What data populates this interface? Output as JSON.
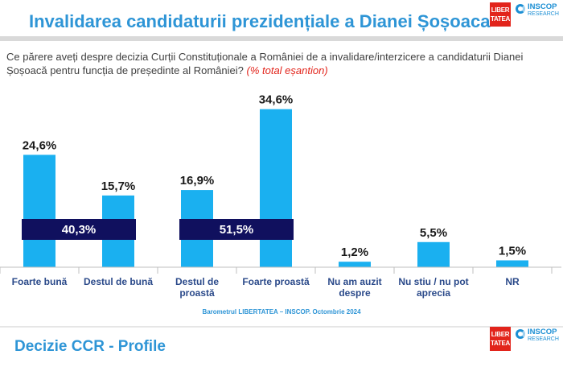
{
  "header": {
    "title": "Invalidarea candidaturii prezidențiale a Dianei Șoșoaca",
    "logo_libertatea": "LIBER TATEA",
    "logo_inscop_name": "INSCOP",
    "logo_inscop_sub": "RESEARCH"
  },
  "question": {
    "text": "Ce părere aveți despre decizia Curții Constituționale a României de a invalidare/interzicere a candidaturii Dianei Șoșoacă pentru funcția de președinte al României?",
    "note": "(% total eșantion)"
  },
  "chart_data": {
    "type": "bar",
    "categories": [
      "Foarte bună",
      "Destul de bună",
      "Destul de proastă",
      "Foarte proastă",
      "Nu am auzit despre",
      "Nu stiu / nu pot aprecia",
      "NR"
    ],
    "values": [
      24.6,
      15.7,
      16.9,
      34.6,
      1.2,
      5.5,
      1.5
    ],
    "value_labels": [
      "24,6%",
      "15,7%",
      "16,9%",
      "34,6%",
      "1,2%",
      "5,5%",
      "1,5%"
    ],
    "groups": [
      {
        "label": "40,3%",
        "value": 40.3,
        "categories": [
          "Foarte bună",
          "Destul de bună"
        ]
      },
      {
        "label": "51,5%",
        "value": 51.5,
        "categories": [
          "Destul de proastă",
          "Foarte proastă"
        ]
      }
    ],
    "ylim": [
      0,
      37
    ],
    "grid": false,
    "colors": {
      "bar": "#1ab0f0",
      "group_band": "#10105e",
      "axis": "#bfbfbf",
      "text": "#1a1a1a",
      "category_text": "#2b4a8a"
    }
  },
  "footer": {
    "source": "Barometrul LIBERTATEA – INSCOP. Octombrie 2024",
    "title": "Decizie CCR - Profile"
  }
}
